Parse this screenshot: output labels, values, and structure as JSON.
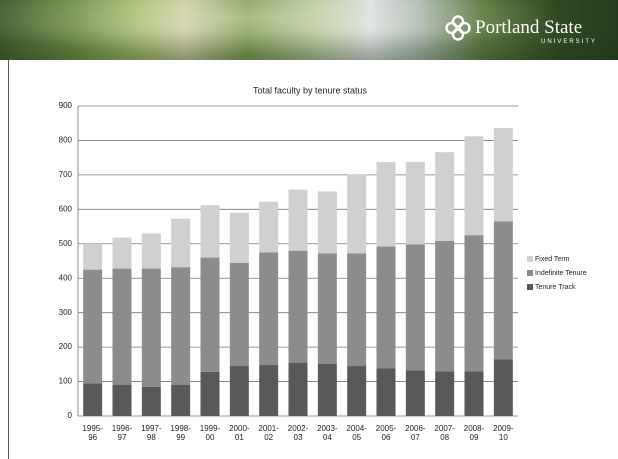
{
  "header": {
    "name": "Portland State",
    "subtitle": "UNIVERSITY"
  },
  "chart_data": {
    "type": "stacked_bar",
    "title": "Total faculty by tenure status",
    "categories": [
      "1995-96",
      "1996-97",
      "1997-98",
      "1998-99",
      "1999-00",
      "2000-01",
      "2001-02",
      "2002-03",
      "2003-04",
      "2004-05",
      "2005-06",
      "2006-07",
      "2007-08",
      "2008-09",
      "2009-10"
    ],
    "series": [
      {
        "name": "Tenure Track",
        "color": "#595959",
        "values": [
          95,
          90,
          85,
          90,
          128,
          145,
          148,
          155,
          152,
          145,
          138,
          132,
          130,
          130,
          165
        ]
      },
      {
        "name": "Indefinite Tenure",
        "color": "#8c8c8c",
        "values": [
          330,
          338,
          343,
          342,
          332,
          300,
          327,
          325,
          320,
          327,
          354,
          366,
          378,
          395,
          400
        ]
      },
      {
        "name": "Fixed Term",
        "color": "#d0d0d0",
        "values": [
          75,
          90,
          102,
          141,
          152,
          145,
          147,
          177,
          180,
          230,
          245,
          240,
          258,
          287,
          271
        ]
      }
    ],
    "ylim": [
      0,
      900
    ],
    "yticks": [
      0,
      100,
      200,
      300,
      400,
      500,
      600,
      700,
      800,
      900
    ],
    "grid": true,
    "legend": "right"
  }
}
